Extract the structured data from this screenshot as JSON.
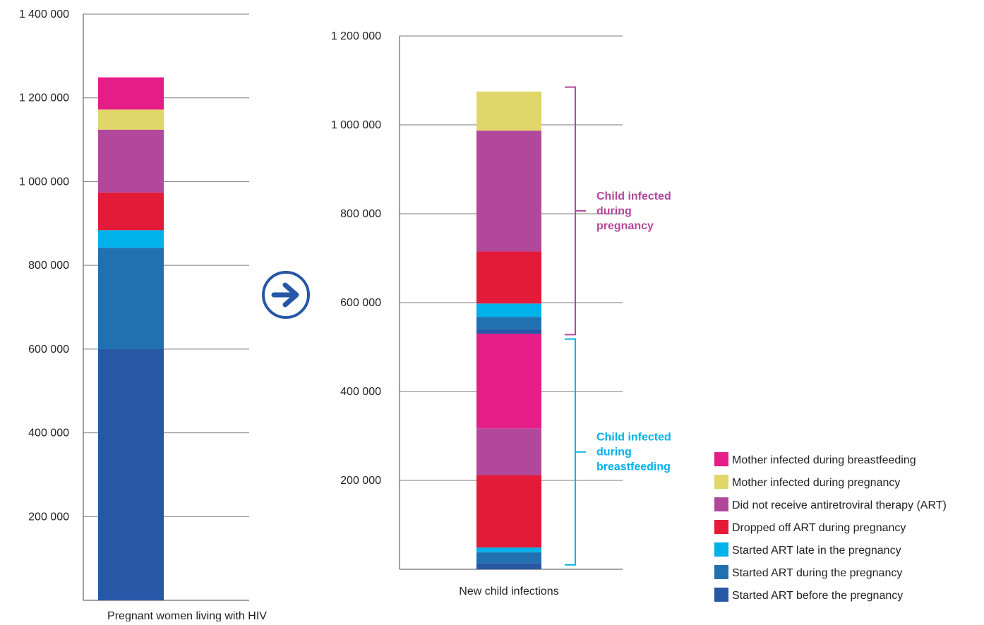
{
  "chart_data": [
    {
      "type": "bar",
      "stacked": true,
      "categories": [
        "Pregnant women living with HIV"
      ],
      "ylim": [
        0,
        1400000
      ],
      "yticks": [
        {
          "value": 200000,
          "label": "200 000"
        },
        {
          "value": 400000,
          "label": "400 000"
        },
        {
          "value": 600000,
          "label": "600 000"
        },
        {
          "value": 800000,
          "label": "800 000"
        },
        {
          "value": 1000000,
          "label": "1 000 000"
        },
        {
          "value": 1200000,
          "label": "1 200 000"
        },
        {
          "value": 1400000,
          "label": "1 400 000"
        }
      ],
      "grid": true,
      "segments": [
        {
          "series": "Started ART before the pregnancy",
          "value": 600000,
          "color": "#2757a5"
        },
        {
          "series": "Started ART during the pregnancy",
          "value": 242000,
          "color": "#2171b0"
        },
        {
          "series": "Started ART late in the pregnancy",
          "value": 42000,
          "color": "#00b1ea"
        },
        {
          "series": "Dropped off ART during pregnancy",
          "value": 90000,
          "color": "#e31a38"
        },
        {
          "series": "Did not receive antiretroviral therapy (ART)",
          "value": 150000,
          "color": "#b2489b"
        },
        {
          "series": "Mother infected during pregnancy",
          "value": 48000,
          "color": "#e0d66a"
        },
        {
          "series": "Mother infected during breastfeeding",
          "value": 77000,
          "color": "#e51e87"
        }
      ]
    },
    {
      "type": "bar",
      "stacked": true,
      "categories": [
        "New child infections"
      ],
      "ylim": [
        0,
        1200000
      ],
      "yticks": [
        {
          "value": 200000,
          "label": "200 000"
        },
        {
          "value": 400000,
          "label": "400 000"
        },
        {
          "value": 600000,
          "label": "600 000"
        },
        {
          "value": 800000,
          "label": "800 000"
        },
        {
          "value": 1000000,
          "label": "1 000 000"
        },
        {
          "value": 1200000,
          "label": "1 200 000"
        }
      ],
      "grid": true,
      "segments": [
        {
          "series": "Started ART before the pregnancy",
          "value": 14000,
          "color": "#2757a5"
        },
        {
          "series": "Started ART during the pregnancy",
          "value": 24000,
          "color": "#2171b0"
        },
        {
          "series": "Started ART late in the pregnancy",
          "value": 11000,
          "color": "#00b1ea"
        },
        {
          "series": "Dropped off ART during pregnancy",
          "value": 163000,
          "color": "#e31a38"
        },
        {
          "series": "Did not receive antiretroviral therapy (ART)",
          "value": 105000,
          "color": "#b2489b"
        },
        {
          "series": "Mother infected during breastfeeding",
          "value": 213000,
          "color": "#e51e87"
        },
        {
          "series": "Started ART before the pregnancy",
          "value": 10000,
          "color": "#2757a5"
        },
        {
          "series": "Started ART during the pregnancy",
          "value": 28000,
          "color": "#2171b0"
        },
        {
          "series": "Started ART late in the pregnancy",
          "value": 30000,
          "color": "#00b1ea"
        },
        {
          "series": "Dropped off ART during pregnancy",
          "value": 117000,
          "color": "#e31a38"
        },
        {
          "series": "Did not receive antiretroviral therapy (ART)",
          "value": 272000,
          "color": "#b2489b"
        },
        {
          "series": "Mother infected during pregnancy",
          "value": 88000,
          "color": "#e0d66a"
        }
      ],
      "brackets": [
        {
          "label": [
            "Child infected",
            "during",
            "pregnancy"
          ],
          "from": 528000,
          "to": 1085000,
          "color": "#b2489b"
        },
        {
          "label": [
            "Child infected",
            "during",
            "breastfeeding"
          ],
          "from": 10000,
          "to": 518000,
          "color": "#00b1ea"
        }
      ]
    }
  ],
  "arrow_icon": "arrow-right-circle-icon",
  "legend": [
    {
      "label": "Mother infected during breastfeeding",
      "color": "#e51e87"
    },
    {
      "label": "Mother infected during pregnancy",
      "color": "#e0d66a"
    },
    {
      "label": "Did not receive antiretroviral therapy (ART)",
      "color": "#b2489b"
    },
    {
      "label": "Dropped off ART during pregnancy",
      "color": "#e31a38"
    },
    {
      "label": "Started ART late in the pregnancy",
      "color": "#00b1ea"
    },
    {
      "label": "Started ART during the pregnancy",
      "color": "#2171b0"
    },
    {
      "label": "Started ART before the pregnancy",
      "color": "#2757a5"
    }
  ],
  "accent_color": "#2757a5"
}
